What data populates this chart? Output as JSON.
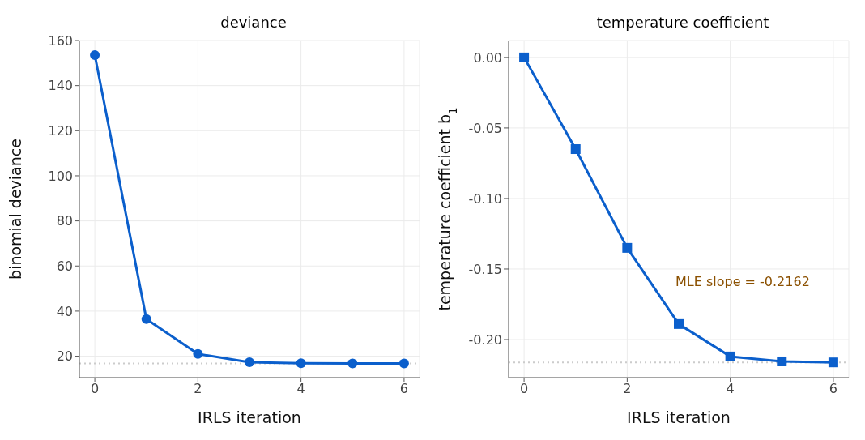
{
  "chart_data": [
    {
      "type": "line",
      "title": "deviance",
      "xlabel": "IRLS iteration",
      "ylabel": "binomial deviance",
      "x": [
        0,
        1,
        2,
        3,
        4,
        5,
        6
      ],
      "series": [
        {
          "color": "#0b5fcc",
          "values": [
            153.5,
            36.5,
            21,
            17.3,
            16.9,
            16.8,
            16.8
          ]
        }
      ],
      "xlim": [
        -0.3,
        6.3
      ],
      "xticks": [
        0,
        2,
        4,
        6
      ],
      "ylim": [
        10.5,
        160
      ],
      "yticks": [
        20,
        40,
        60,
        80,
        100,
        120,
        140,
        160
      ],
      "grid": true,
      "marker": "circle",
      "line_style": "solid",
      "ref_lines": [
        {
          "axis": "y",
          "value": 16.8,
          "color": "#cccccc",
          "line_style": "dotted"
        }
      ]
    },
    {
      "type": "line",
      "title": "temperature coefficient",
      "xlabel": "IRLS iteration",
      "ylabel": "temperature coefficient b$_{1}$",
      "x": [
        0,
        1,
        2,
        3,
        4,
        5,
        6
      ],
      "series": [
        {
          "color": "#0b5fcc",
          "values": [
            0,
            -0.065,
            -0.135,
            -0.189,
            -0.212,
            -0.2155,
            -0.2162
          ]
        }
      ],
      "xlim": [
        -0.3,
        6.3
      ],
      "xticks": [
        0,
        2,
        4,
        6
      ],
      "ylim": [
        -0.227,
        0.012
      ],
      "yticks": [
        {
          "value": 0,
          "label": "0.00"
        },
        {
          "value": -0.05,
          "label": "-0.05"
        },
        {
          "value": -0.1,
          "label": "-0.10"
        },
        {
          "value": -0.15,
          "label": "-0.15"
        },
        {
          "value": -0.2,
          "label": "-0.20"
        }
      ],
      "grid": true,
      "marker": "square",
      "line_style": "solid",
      "ref_lines": [
        {
          "axis": "y",
          "value": -0.2162,
          "color": "#cccccc",
          "line_style": "dotted"
        }
      ],
      "annotations": [
        "MLE slope = -0.2162"
      ]
    }
  ]
}
